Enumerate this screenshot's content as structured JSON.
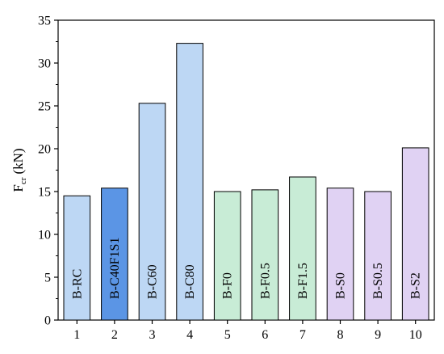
{
  "chart_data": {
    "type": "bar",
    "title": "",
    "xlabel": "",
    "ylabel": {
      "main": "F",
      "subscript": "cr",
      "unit": "(kN)"
    },
    "ylim": [
      0,
      35
    ],
    "yticks": [
      0,
      5,
      10,
      15,
      20,
      25,
      30,
      35
    ],
    "categories": [
      "1",
      "2",
      "3",
      "4",
      "5",
      "6",
      "7",
      "8",
      "9",
      "10"
    ],
    "bar_labels": [
      "B-RC",
      "B-C40F1S1",
      "B-C60",
      "B-C80",
      "B-F0",
      "B-F0.5",
      "B-F1.5",
      "B-S0",
      "B-S0.5",
      "B-S2"
    ],
    "values": [
      14.5,
      15.4,
      25.3,
      32.3,
      15.0,
      15.2,
      16.7,
      15.4,
      15.0,
      20.1
    ],
    "colors": [
      "#bdd7f4",
      "#5b95e5",
      "#bdd7f4",
      "#bdd7f4",
      "#c8ecd6",
      "#c8ecd6",
      "#c8ecd6",
      "#e0d2f3",
      "#e0d2f3",
      "#e0d2f3"
    ],
    "grid": false,
    "legend": "none"
  }
}
